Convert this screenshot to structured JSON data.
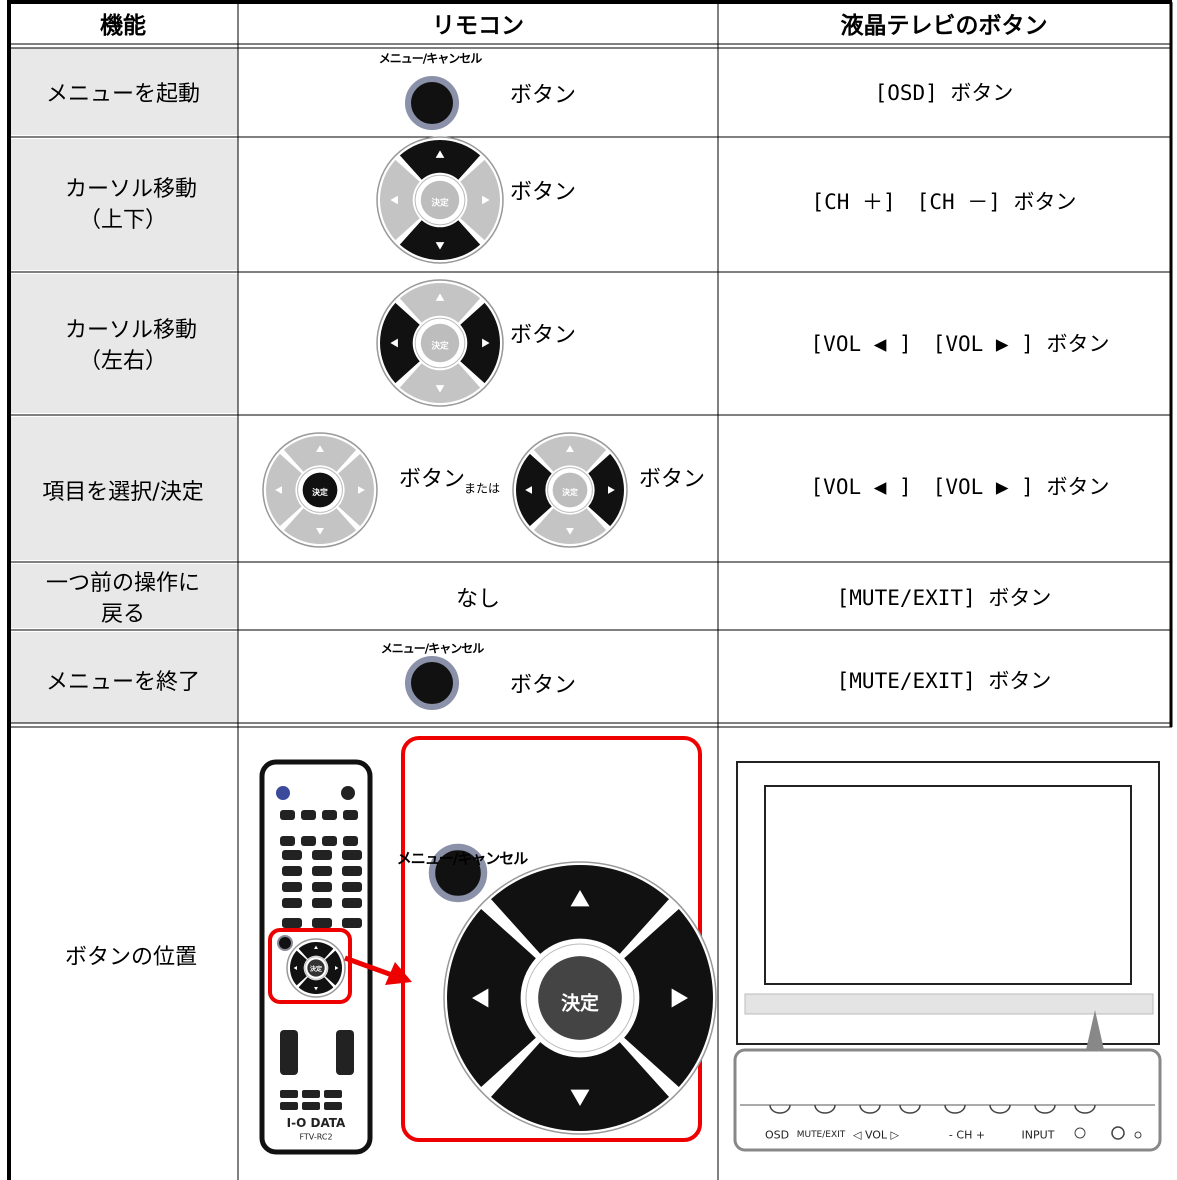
{
  "header": [
    "機能",
    "リモコン",
    "液晶テレビのボタン"
  ],
  "rows": [
    {
      "function": [
        "メニューを起動"
      ],
      "remote": {
        "label": "メニュー/キャンセル",
        "text": "ボタン"
      },
      "tv": "[OSD] ボタン"
    },
    {
      "function": [
        "カーソル移動",
        "（上下）"
      ],
      "remote": {
        "text": "ボタン"
      },
      "tv": "[CH ＋]　[CH －] ボタン"
    },
    {
      "function": [
        "カーソル移動",
        "（左右）"
      ],
      "remote": {
        "text": "ボタン"
      },
      "tv": "[VOL ◀ ]　[VOL ▶ ] ボタン"
    },
    {
      "function": [
        "項目を選択/決定"
      ],
      "remote": {
        "text": "ボタン",
        "or": "または",
        "text2": "ボタン"
      },
      "tv": "[VOL ◀ ]　[VOL ▶ ] ボタン"
    },
    {
      "function": [
        "一つ前の操作に",
        "戻る"
      ],
      "remote": {
        "text": "なし"
      },
      "tv": "[MUTE/EXIT] ボタン"
    },
    {
      "function": [
        "メニューを終了"
      ],
      "remote": {
        "label": "メニュー/キャンセル",
        "text": "ボタン"
      },
      "tv": "[MUTE/EXIT] ボタン"
    },
    {
      "function": [
        "ボタンの位置"
      ],
      "remote": {
        "label": "メニュー/キャンセル",
        "brand": "I-O DATA",
        "model": "FTV-RC2"
      },
      "tv_panel": [
        "OSD",
        "MUTE/EXIT",
        "◁ VOL ▷",
        "- CH +",
        "INPUT"
      ]
    }
  ],
  "dpad_center": "決定"
}
